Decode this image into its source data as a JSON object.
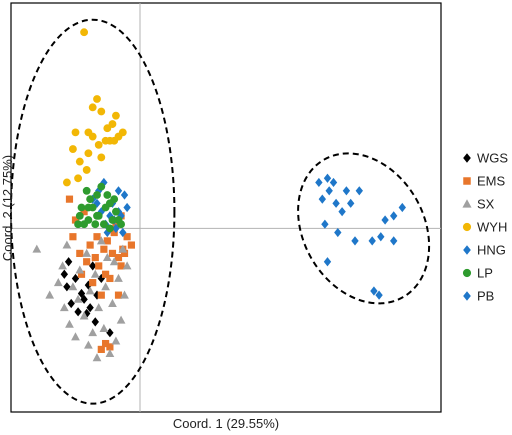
{
  "chart_data": {
    "type": "scatter",
    "title": "",
    "xlabel": "Coord. 1 (29.55%)",
    "ylabel": "Coord. 2 (12.75%)",
    "xlim": [
      -1.5,
      3.5
    ],
    "ylim": [
      -2.2,
      2.7
    ],
    "grid": false,
    "legend_position": "right",
    "series": [
      {
        "name": "WGS",
        "marker": "diamond",
        "color": "#000000",
        "points": [
          [
            -0.88,
            -0.55
          ],
          [
            -0.85,
            -0.7
          ],
          [
            -0.83,
            -0.4
          ],
          [
            -0.8,
            -0.9
          ],
          [
            -0.75,
            -0.6
          ],
          [
            -0.72,
            -1.0
          ],
          [
            -0.68,
            -0.78
          ],
          [
            -0.65,
            -0.85
          ],
          [
            -0.62,
            -1.02
          ],
          [
            -0.58,
            -0.95
          ],
          [
            -0.6,
            -0.68
          ],
          [
            -0.55,
            -0.45
          ],
          [
            -0.52,
            -1.12
          ],
          [
            -0.5,
            -0.8
          ],
          [
            -0.45,
            -0.6
          ],
          [
            -0.35,
            -1.25
          ]
        ]
      },
      {
        "name": "EMS",
        "marker": "square",
        "color": "#E8762B",
        "points": [
          [
            -0.82,
            0.35
          ],
          [
            -0.78,
            -0.1
          ],
          [
            -0.75,
            0.1
          ],
          [
            -0.7,
            -0.3
          ],
          [
            -0.68,
            -0.55
          ],
          [
            -0.65,
            0.2
          ],
          [
            -0.62,
            -0.4
          ],
          [
            -0.58,
            -0.2
          ],
          [
            -0.55,
            -0.65
          ],
          [
            -0.52,
            -0.35
          ],
          [
            -0.5,
            -0.1
          ],
          [
            -0.48,
            -0.45
          ],
          [
            -0.45,
            -0.8
          ],
          [
            -0.42,
            -0.25
          ],
          [
            -0.4,
            -0.55
          ],
          [
            -0.38,
            -0.15
          ],
          [
            -0.35,
            -0.6
          ],
          [
            -0.32,
            -0.3
          ],
          [
            -0.3,
            -0.05
          ],
          [
            -0.28,
            0.05
          ],
          [
            -0.25,
            -0.35
          ],
          [
            -0.22,
            -0.45
          ],
          [
            -0.2,
            -0.25
          ],
          [
            -0.18,
            -0.3
          ],
          [
            -0.15,
            -0.1
          ],
          [
            -0.22,
            0.15
          ],
          [
            -0.45,
            -1.45
          ],
          [
            -0.4,
            -1.38
          ],
          [
            -0.35,
            -1.42
          ],
          [
            -0.25,
            -0.8
          ],
          [
            -0.1,
            -0.2
          ]
        ]
      },
      {
        "name": "SX",
        "marker": "triangle",
        "color": "#A0A0A0",
        "points": [
          [
            -1.2,
            -0.25
          ],
          [
            -1.05,
            -0.8
          ],
          [
            -0.95,
            -0.65
          ],
          [
            -0.9,
            -0.45
          ],
          [
            -0.88,
            -0.95
          ],
          [
            -0.85,
            -0.2
          ],
          [
            -0.82,
            -1.15
          ],
          [
            -0.78,
            -0.7
          ],
          [
            -0.75,
            -1.3
          ],
          [
            -0.72,
            -0.85
          ],
          [
            -0.7,
            -0.5
          ],
          [
            -0.65,
            -1.05
          ],
          [
            -0.62,
            -0.3
          ],
          [
            -0.6,
            -1.4
          ],
          [
            -0.58,
            -0.75
          ],
          [
            -0.55,
            -1.25
          ],
          [
            -0.52,
            -0.55
          ],
          [
            -0.5,
            -1.55
          ],
          [
            -0.48,
            -0.95
          ],
          [
            -0.45,
            -0.15
          ],
          [
            -0.42,
            -1.2
          ],
          [
            -0.4,
            -0.7
          ],
          [
            -0.38,
            -0.35
          ],
          [
            -0.35,
            -1.5
          ],
          [
            -0.32,
            -0.9
          ],
          [
            -0.3,
            -0.4
          ],
          [
            -0.28,
            -1.35
          ],
          [
            -0.25,
            -0.6
          ],
          [
            -0.22,
            -1.1
          ],
          [
            -0.2,
            -0.25
          ],
          [
            -0.18,
            -0.8
          ],
          [
            -0.15,
            -0.45
          ]
        ]
      },
      {
        "name": "WYH",
        "marker": "circle",
        "color": "#F2B705",
        "points": [
          [
            -0.65,
            2.35
          ],
          [
            -0.78,
            0.95
          ],
          [
            -0.7,
            0.8
          ],
          [
            -0.6,
            0.9
          ],
          [
            -0.55,
            1.1
          ],
          [
            -0.48,
            1.0
          ],
          [
            -0.45,
            0.85
          ],
          [
            -0.4,
            1.05
          ],
          [
            -0.38,
            1.2
          ],
          [
            -0.35,
            1.05
          ],
          [
            -0.32,
            1.25
          ],
          [
            -0.3,
            1.05
          ],
          [
            -0.25,
            1.1
          ],
          [
            -0.2,
            1.15
          ],
          [
            -0.28,
            1.35
          ],
          [
            -0.75,
            1.15
          ],
          [
            -0.6,
            1.15
          ],
          [
            -0.55,
            1.45
          ],
          [
            -0.5,
            1.55
          ],
          [
            -0.45,
            1.4
          ],
          [
            -0.62,
            0.7
          ],
          [
            -0.72,
            0.6
          ],
          [
            -0.85,
            0.55
          ]
        ]
      },
      {
        "name": "HNG",
        "marker": "diamond",
        "color": "#1F77C9",
        "points": [
          [
            -0.42,
            0.55
          ],
          [
            -0.4,
            0.05
          ],
          [
            -0.38,
            -0.05
          ],
          [
            -0.35,
            0.15
          ],
          [
            -0.32,
            0.3
          ],
          [
            -0.3,
            0.1
          ],
          [
            -0.28,
            0.0
          ],
          [
            -0.25,
            0.2
          ],
          [
            -0.22,
            0.15
          ],
          [
            -0.2,
            -0.05
          ],
          [
            -0.18,
            0.4
          ],
          [
            -0.45,
            0.2
          ],
          [
            -0.5,
            0.3
          ],
          [
            -0.15,
            0.25
          ],
          [
            -0.25,
            0.45
          ],
          [
            -0.48,
            0.45
          ],
          [
            -0.55,
            0.35
          ]
        ]
      },
      {
        "name": "LP",
        "marker": "circle",
        "color": "#2E9B2E",
        "points": [
          [
            -0.72,
            0.05
          ],
          [
            -0.7,
            0.15
          ],
          [
            -0.68,
            0.25
          ],
          [
            -0.65,
            0.05
          ],
          [
            -0.62,
            0.45
          ],
          [
            -0.6,
            0.1
          ],
          [
            -0.55,
            0.25
          ],
          [
            -0.52,
            0.05
          ],
          [
            -0.5,
            0.4
          ],
          [
            -0.48,
            0.15
          ],
          [
            -0.45,
            0.5
          ],
          [
            -0.42,
            0.05
          ],
          [
            -0.4,
            0.25
          ],
          [
            -0.38,
            0.4
          ],
          [
            -0.35,
            0.3
          ],
          [
            -0.32,
            0.1
          ],
          [
            -0.3,
            0.35
          ],
          [
            -0.28,
            0.2
          ],
          [
            -0.25,
            0.1
          ],
          [
            -0.22,
            0.05
          ],
          [
            -0.6,
            0.25
          ],
          [
            -0.58,
            0.35
          ],
          [
            -0.5,
            0.15
          ],
          [
            -0.35,
            0.0
          ]
        ]
      },
      {
        "name": "PB",
        "marker": "diamond",
        "color": "#1F77C9",
        "points": [
          [
            2.08,
            0.55
          ],
          [
            2.12,
            0.35
          ],
          [
            2.18,
            0.6
          ],
          [
            2.25,
            0.55
          ],
          [
            2.2,
            0.45
          ],
          [
            2.28,
            0.3
          ],
          [
            2.35,
            0.2
          ],
          [
            2.4,
            0.45
          ],
          [
            2.45,
            0.3
          ],
          [
            2.55,
            0.45
          ],
          [
            2.15,
            0.05
          ],
          [
            2.3,
            -0.05
          ],
          [
            2.5,
            -0.15
          ],
          [
            2.7,
            -0.15
          ],
          [
            2.8,
            -0.1
          ],
          [
            2.85,
            0.1
          ],
          [
            2.95,
            0.15
          ],
          [
            3.05,
            0.25
          ],
          [
            2.95,
            -0.15
          ],
          [
            2.18,
            -0.4
          ],
          [
            2.72,
            -0.75
          ],
          [
            2.78,
            -0.8
          ]
        ]
      }
    ],
    "ellipses": [
      {
        "cx": -0.55,
        "cy": 0.2,
        "rx": 0.95,
        "ry": 2.3,
        "rotation": 0
      },
      {
        "cx": 2.6,
        "cy": 0.0,
        "rx": 0.7,
        "ry": 0.95,
        "rotation": -30
      }
    ]
  }
}
